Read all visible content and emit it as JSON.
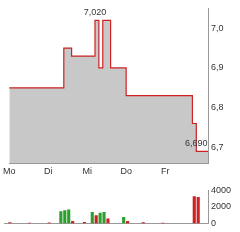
{
  "chart_data": [
    {
      "type": "line",
      "line_style": "steps",
      "color": "#cc2222",
      "grid": false,
      "categories": [
        "Mo",
        null,
        null,
        null,
        null,
        null,
        null,
        null,
        null,
        null,
        "Di",
        null,
        null,
        null,
        null,
        null,
        null,
        null,
        null,
        null,
        "Mi",
        null,
        null,
        null,
        null,
        null,
        null,
        null,
        null,
        null,
        "Do",
        null,
        null,
        null,
        null,
        null,
        null,
        null,
        null,
        null,
        "Fr",
        null,
        null,
        null,
        null,
        null,
        null,
        null,
        null,
        null,
        null,
        null
      ],
      "values": [
        6.85,
        6.85,
        6.85,
        6.85,
        6.85,
        6.85,
        6.85,
        6.85,
        6.85,
        6.85,
        6.85,
        6.85,
        6.85,
        6.85,
        6.95,
        6.95,
        6.93,
        6.93,
        6.93,
        6.93,
        6.93,
        6.93,
        7.02,
        6.9,
        7.02,
        7.02,
        6.9,
        6.9,
        6.9,
        6.9,
        6.83,
        6.83,
        6.83,
        6.83,
        6.83,
        6.83,
        6.83,
        6.83,
        6.83,
        6.83,
        6.83,
        6.83,
        6.83,
        6.83,
        6.83,
        6.83,
        6.83,
        6.76,
        6.69,
        6.69,
        6.69,
        6.69
      ],
      "ylim": [
        6.66,
        7.05
      ],
      "yticks": [
        {
          "value": 6.7,
          "label": "6,7"
        },
        {
          "value": 6.8,
          "label": "6,8"
        },
        {
          "value": 6.9,
          "label": "6,9"
        },
        {
          "value": 7.0,
          "label": "7,0"
        }
      ],
      "annotations": [
        {
          "label": "7,020",
          "value": 7.02
        },
        {
          "label": "6,690",
          "value": 6.69
        }
      ]
    },
    {
      "type": "bar",
      "grid": false,
      "tick_labels": "y",
      "categories": [
        null,
        null,
        null,
        null,
        null,
        null,
        null,
        null,
        null,
        null,
        null,
        null,
        null,
        null,
        null,
        null,
        null,
        null,
        null,
        null,
        null,
        null,
        null,
        null,
        null,
        null,
        null,
        null,
        null,
        null,
        null,
        null,
        null,
        null,
        null,
        null,
        null,
        null,
        null,
        null,
        null,
        null,
        null,
        null,
        null,
        null,
        null,
        null,
        null,
        null,
        null,
        null
      ],
      "values": [
        0,
        150,
        0,
        0,
        0,
        0,
        100,
        0,
        0,
        0,
        0,
        120,
        0,
        0,
        1500,
        1600,
        1700,
        300,
        0,
        0,
        200,
        0,
        1400,
        1000,
        1300,
        1400,
        600,
        0,
        0,
        0,
        800,
        300,
        0,
        0,
        0,
        150,
        0,
        0,
        0,
        0,
        100,
        0,
        0,
        0,
        0,
        0,
        0,
        0,
        3300,
        3200,
        0,
        0
      ],
      "colors": [
        "#cc2222",
        "#cc2222",
        "#cc2222",
        "#cc2222",
        "#cc2222",
        "#cc2222",
        "#cc2222",
        "#cc2222",
        "#cc2222",
        "#cc2222",
        "#cc2222",
        "#cc2222",
        "#cc2222",
        "#cc2222",
        "#2e9e2e",
        "#2e9e2e",
        "#2e9e2e",
        "#cc2222",
        "#cc2222",
        "#cc2222",
        "#cc2222",
        "#cc2222",
        "#2e9e2e",
        "#cc2222",
        "#2e9e2e",
        "#2e9e2e",
        "#cc2222",
        "#cc2222",
        "#cc2222",
        "#cc2222",
        "#2e9e2e",
        "#cc2222",
        "#cc2222",
        "#cc2222",
        "#cc2222",
        "#cc2222",
        "#cc2222",
        "#cc2222",
        "#cc2222",
        "#cc2222",
        "#cc2222",
        "#cc2222",
        "#cc2222",
        "#cc2222",
        "#cc2222",
        "#cc2222",
        "#cc2222",
        "#cc2222",
        "#cc2222",
        "#cc2222",
        "#cc2222",
        "#cc2222"
      ],
      "ylim": [
        0,
        4000
      ],
      "yticks": [
        0,
        2000,
        4000
      ]
    }
  ]
}
